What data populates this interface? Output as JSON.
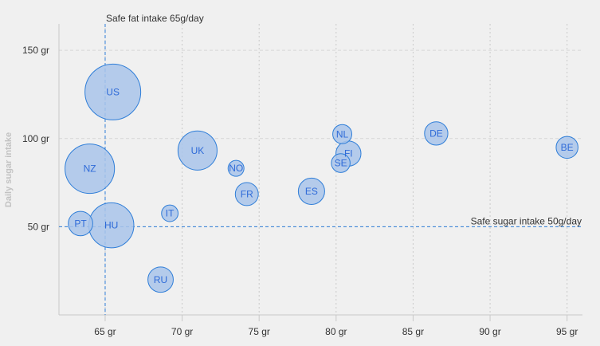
{
  "chart_data": {
    "type": "scatter",
    "title": "",
    "xlabel": "",
    "ylabel": "Daily sugar intake",
    "x_tick_labels": [
      "65 gr",
      "70 gr",
      "75 gr",
      "80 gr",
      "85 gr",
      "90 gr",
      "95 gr"
    ],
    "x_ticks": [
      65,
      70,
      75,
      80,
      85,
      90,
      95
    ],
    "y_tick_labels": [
      "50 gr",
      "100 gr",
      "150 gr"
    ],
    "y_ticks": [
      50,
      100,
      150
    ],
    "xlim": [
      62,
      96
    ],
    "ylim": [
      0,
      165
    ],
    "grid": true,
    "plot_lines": [
      {
        "axis": "x",
        "value": 65,
        "label": "Safe fat intake 65g/day"
      },
      {
        "axis": "y",
        "value": 50,
        "label": "Safe sugar intake 50g/day"
      }
    ],
    "points": [
      {
        "label": "BE",
        "x": 95,
        "y": 95,
        "z": 13.8
      },
      {
        "label": "DE",
        "x": 86.5,
        "y": 102.9,
        "z": 14.7
      },
      {
        "label": "FI",
        "x": 80.8,
        "y": 91.5,
        "z": 15.8
      },
      {
        "label": "NL",
        "x": 80.4,
        "y": 102.5,
        "z": 12
      },
      {
        "label": "SE",
        "x": 80.3,
        "y": 86.1,
        "z": 11.8
      },
      {
        "label": "ES",
        "x": 78.4,
        "y": 70.1,
        "z": 16.6
      },
      {
        "label": "FR",
        "x": 74.2,
        "y": 68.5,
        "z": 14.5
      },
      {
        "label": "NO",
        "x": 73.5,
        "y": 83.1,
        "z": 10
      },
      {
        "label": "UK",
        "x": 71,
        "y": 93.2,
        "z": 24.7
      },
      {
        "label": "IT",
        "x": 69.2,
        "y": 57.6,
        "z": 10.4
      },
      {
        "label": "RU",
        "x": 68.6,
        "y": 20,
        "z": 16
      },
      {
        "label": "US",
        "x": 65.5,
        "y": 126.4,
        "z": 35.3
      },
      {
        "label": "HU",
        "x": 65.4,
        "y": 50.8,
        "z": 28.5
      },
      {
        "label": "PT",
        "x": 63.4,
        "y": 51.8,
        "z": 15.4
      },
      {
        "label": "NZ",
        "x": 64,
        "y": 82.9,
        "z": 31.3
      }
    ],
    "colors": {
      "bubble_fill": "#a9c4ea",
      "bubble_stroke": "#2f7ed8",
      "label": "#2f6bd8",
      "plot_line": "#2f7ed8"
    }
  }
}
